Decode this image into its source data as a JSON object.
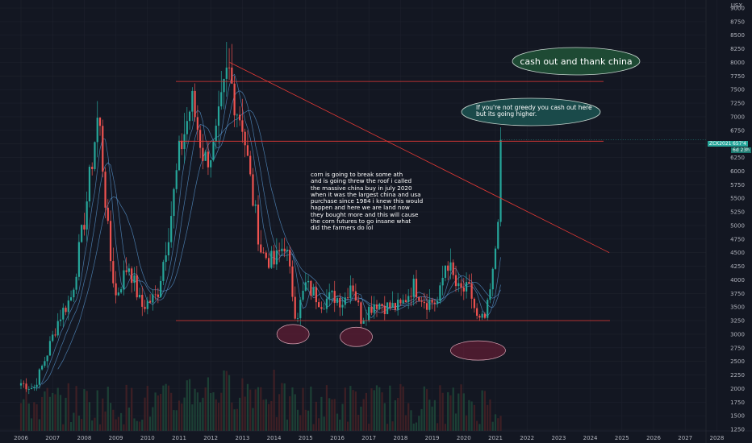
{
  "axis": {
    "currency": "USX"
  },
  "price_tag": {
    "symbol": "ZCK2021",
    "value": "657'4",
    "countdown": "6d 23h"
  },
  "annotations": {
    "main_text": "corn is going to break some ath\nand is going threw the roof i called\nthe massive china buy in  july 2020\nwhen it was the largest china and usa\npurchase since 1984 i knew this would\nhappen and here we are land now\nthey bought more and this will cause\nthe corn futures to go insane what\ndid the farmers do lol",
    "bubble_top": "cash out and thank china",
    "bubble_mid": "If you're not greedy you cash out here\nbut its going higher."
  },
  "colors": {
    "background": "#131722",
    "up": "#26a69a",
    "down": "#ef5350",
    "grid": "#1e222d",
    "ma": "#5b9bd5",
    "resistance": "#e53935",
    "tag": "#26a69a"
  },
  "chart_data": {
    "type": "candlestick",
    "ylim": [
      1250,
      9000
    ],
    "y_ticks": [
      "9000",
      "8750",
      "8500",
      "8250",
      "8000",
      "7750",
      "7500",
      "7250",
      "7000",
      "6750",
      "6500",
      "6250",
      "6000",
      "5750",
      "5500",
      "5250",
      "5000",
      "4750",
      "4500",
      "4250",
      "4000",
      "3750",
      "3500",
      "3250",
      "3000",
      "2750",
      "2500",
      "2250",
      "2000",
      "1750",
      "1500",
      "1250"
    ],
    "x_ticks": [
      "2006",
      "2007",
      "2008",
      "2009",
      "2010",
      "2011",
      "2012",
      "2013",
      "2014",
      "2015",
      "2016",
      "2017",
      "2018",
      "2019",
      "2020",
      "2021",
      "2022",
      "2023",
      "2024",
      "2025",
      "2026",
      "2027",
      "2028"
    ],
    "xlim": [
      2005.9,
      2028.8
    ],
    "horizontal_levels": [
      7650,
      6550,
      3250
    ],
    "trendline": {
      "from": [
        2012.6,
        8000
      ],
      "to": [
        2024.6,
        4500
      ]
    },
    "highlight_ellipses": [
      {
        "x": 2014.6,
        "y": 3000
      },
      {
        "x": 2016.6,
        "y": 2950
      },
      {
        "x": 2020.45,
        "y": 2700
      }
    ],
    "price_path": [
      [
        2006.0,
        2100
      ],
      [
        2006.4,
        2000
      ],
      [
        2006.8,
        2600
      ],
      [
        2007.2,
        3300
      ],
      [
        2007.6,
        3700
      ],
      [
        2008.0,
        5100
      ],
      [
        2008.45,
        7100
      ],
      [
        2008.8,
        4500
      ],
      [
        2009.0,
        3700
      ],
      [
        2009.4,
        4300
      ],
      [
        2009.8,
        3500
      ],
      [
        2010.3,
        3700
      ],
      [
        2010.7,
        5000
      ],
      [
        2011.0,
        6300
      ],
      [
        2011.4,
        7300
      ],
      [
        2011.8,
        6200
      ],
      [
        2012.1,
        6400
      ],
      [
        2012.55,
        7900
      ],
      [
        2012.8,
        7200
      ],
      [
        2013.0,
        6900
      ],
      [
        2013.3,
        5600
      ],
      [
        2013.6,
        4500
      ],
      [
        2014.0,
        4300
      ],
      [
        2014.35,
        4700
      ],
      [
        2014.7,
        3300
      ],
      [
        2015.0,
        3900
      ],
      [
        2015.5,
        3600
      ],
      [
        2015.9,
        3700
      ],
      [
        2016.2,
        3600
      ],
      [
        2016.45,
        4000
      ],
      [
        2016.75,
        3300
      ],
      [
        2017.2,
        3600
      ],
      [
        2017.6,
        3500
      ],
      [
        2018.0,
        3500
      ],
      [
        2018.4,
        3900
      ],
      [
        2018.8,
        3600
      ],
      [
        2019.2,
        3600
      ],
      [
        2019.45,
        4400
      ],
      [
        2019.8,
        3800
      ],
      [
        2020.2,
        3800
      ],
      [
        2020.45,
        3200
      ],
      [
        2020.7,
        3300
      ],
      [
        2020.95,
        4200
      ],
      [
        2021.1,
        5400
      ],
      [
        2021.2,
        6574
      ]
    ]
  }
}
